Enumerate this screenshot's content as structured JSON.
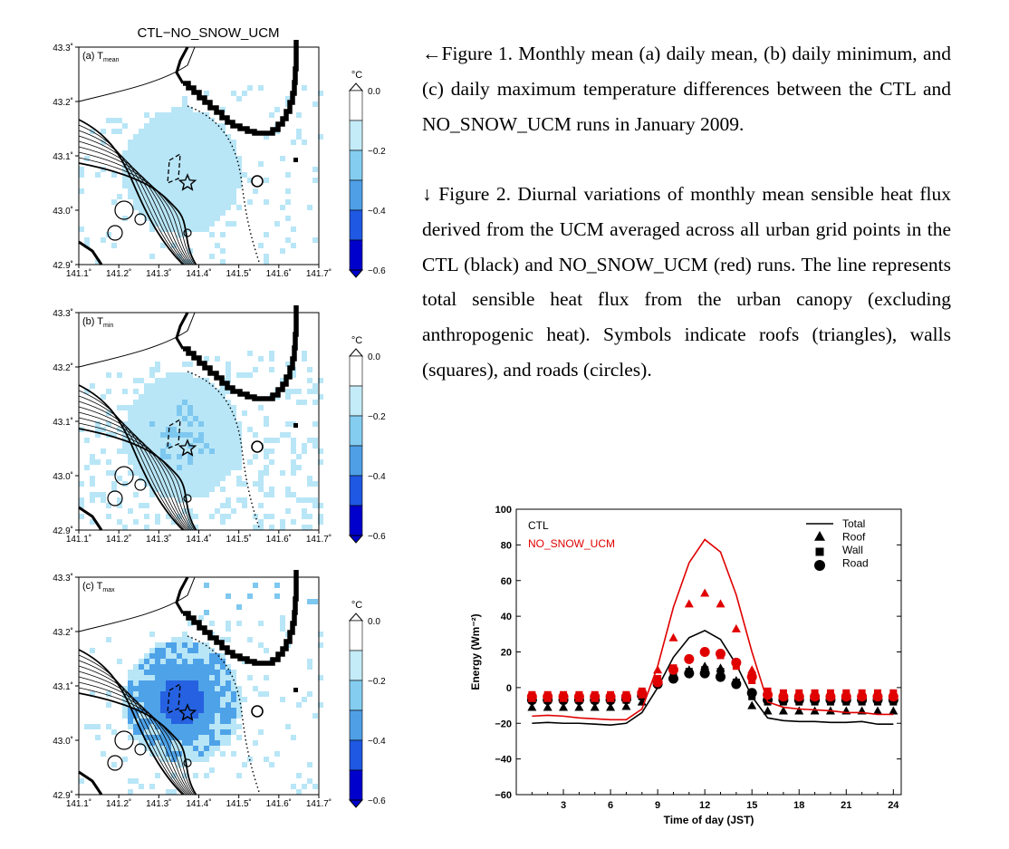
{
  "maps": {
    "title": "CTL−NO_SNOW_UCM",
    "panels": [
      {
        "label": "(a) T",
        "sub": "mean",
        "intensity": 1
      },
      {
        "label": "(b) T",
        "sub": "min",
        "intensity": 2
      },
      {
        "label": "(c) T",
        "sub": "max",
        "intensity": 3
      }
    ],
    "lat_ticks": [
      "43.3˚",
      "43.2˚",
      "43.1˚",
      "43.0˚",
      "42.9˚"
    ],
    "lon_ticks": [
      "141.1˚",
      "141.2˚",
      "141.3˚",
      "141.4˚",
      "141.5˚",
      "141.6˚",
      "141.7˚"
    ],
    "colorbar": {
      "unit": "°C",
      "ticks": [
        "0.0",
        "−0.2",
        "−0.4",
        "−0.6"
      ],
      "colors": [
        "#ffffff",
        "#b8e6f7",
        "#7ec8f0",
        "#4ea2e8",
        "#2561e0",
        "#0000c8"
      ]
    }
  },
  "captions": {
    "fig1": "←Figure 1. Monthly mean (a) daily mean, (b) daily minimum, and (c) daily maximum temperature differences between the CTL and NO_SNOW_UCM runs in January 2009.",
    "fig2": "↓ Figure 2. Diurnal variations of monthly mean sensible heat flux derived from the UCM averaged across all urban grid points in the CTL (black) and NO_SNOW_UCM (red) runs. The line represents total sensible heat flux from the urban canopy (excluding anthropogenic heat). Symbols indicate roofs (triangles), walls (squares), and roads (circles)."
  },
  "chart_data": {
    "type": "line",
    "xlabel": "Time of day (JST)",
    "ylabel": "Energy (Wm⁻²)",
    "xlim": [
      0,
      24.5
    ],
    "ylim": [
      -60,
      100
    ],
    "xticks": [
      3,
      6,
      9,
      12,
      15,
      18,
      21,
      24
    ],
    "yticks": [
      -60,
      -40,
      -20,
      0,
      20,
      40,
      60,
      80,
      100
    ],
    "legend_runs": [
      "CTL",
      "NO_SNOW_UCM"
    ],
    "legend_symbols": [
      "Total",
      "Roof",
      "Wall",
      "Road"
    ],
    "colors": {
      "CTL": "#000000",
      "NO_SNOW_UCM": "#e00000"
    },
    "x": [
      1,
      2,
      3,
      4,
      5,
      6,
      7,
      8,
      9,
      10,
      11,
      12,
      13,
      14,
      15,
      16,
      17,
      18,
      19,
      20,
      21,
      22,
      23,
      24
    ],
    "series": [
      {
        "name": "CTL",
        "component": "Total",
        "values": [
          -20,
          -19.5,
          -20,
          -20,
          -20.5,
          -21,
          -20,
          -14,
          0,
          17,
          28,
          32,
          27,
          13,
          -5,
          -17,
          -18.5,
          -19,
          -19,
          -19.5,
          -19.5,
          -19,
          -20.5,
          -20.5
        ]
      },
      {
        "name": "CTL",
        "component": "Roof",
        "values": [
          -11,
          -11,
          -11,
          -11,
          -11,
          -11,
          -10.5,
          -8,
          3,
          7,
          10,
          12,
          11,
          4,
          -10,
          -13,
          -13,
          -13,
          -13,
          -13,
          -13,
          -13,
          -13,
          -13
        ]
      },
      {
        "name": "CTL",
        "component": "Wall",
        "values": [
          -7,
          -7,
          -7,
          -7,
          -7,
          -7,
          -7,
          -5,
          3,
          7,
          9,
          10,
          9,
          3,
          -5,
          -8,
          -8,
          -8,
          -8,
          -8,
          -8,
          -8,
          -8,
          -8
        ]
      },
      {
        "name": "CTL",
        "component": "Road",
        "values": [
          -7,
          -7,
          -7,
          -7,
          -7,
          -7,
          -6.5,
          -4.5,
          2,
          5,
          8,
          8,
          6,
          2,
          -3,
          -7,
          -7,
          -7,
          -7,
          -7,
          -7,
          -7,
          -7,
          -7
        ]
      },
      {
        "name": "NO_SNOW_UCM",
        "component": "Total",
        "values": [
          -16,
          -15.5,
          -16,
          -17,
          -17.5,
          -18,
          -18,
          -12,
          12,
          45,
          70,
          83,
          76,
          52,
          20,
          -8,
          -11,
          -12,
          -12.5,
          -13,
          -14,
          -14,
          -15,
          -15
        ]
      },
      {
        "name": "NO_SNOW_UCM",
        "component": "Roof",
        "values": [
          -6,
          -6,
          -6,
          -6,
          -6,
          -6,
          -6,
          -4,
          10,
          28,
          47,
          53,
          47,
          33,
          10,
          -3,
          -5,
          -5,
          -5,
          -5,
          -5,
          -5,
          -5,
          -5
        ]
      },
      {
        "name": "NO_SNOW_UCM",
        "component": "Wall",
        "values": [
          -4,
          -4,
          -4,
          -4,
          -4,
          -4,
          -4,
          -2,
          5,
          11,
          16,
          20,
          18,
          12,
          4,
          -2,
          -3,
          -3,
          -3,
          -3,
          -3,
          -3,
          -3,
          -3
        ]
      },
      {
        "name": "NO_SNOW_UCM",
        "component": "Road",
        "values": [
          -5,
          -5,
          -5,
          -5,
          -5,
          -5,
          -5,
          -3,
          3,
          10,
          16,
          20,
          19,
          14,
          6,
          -4,
          -5,
          -5,
          -5,
          -5,
          -5,
          -5,
          -5,
          -5
        ]
      }
    ]
  }
}
